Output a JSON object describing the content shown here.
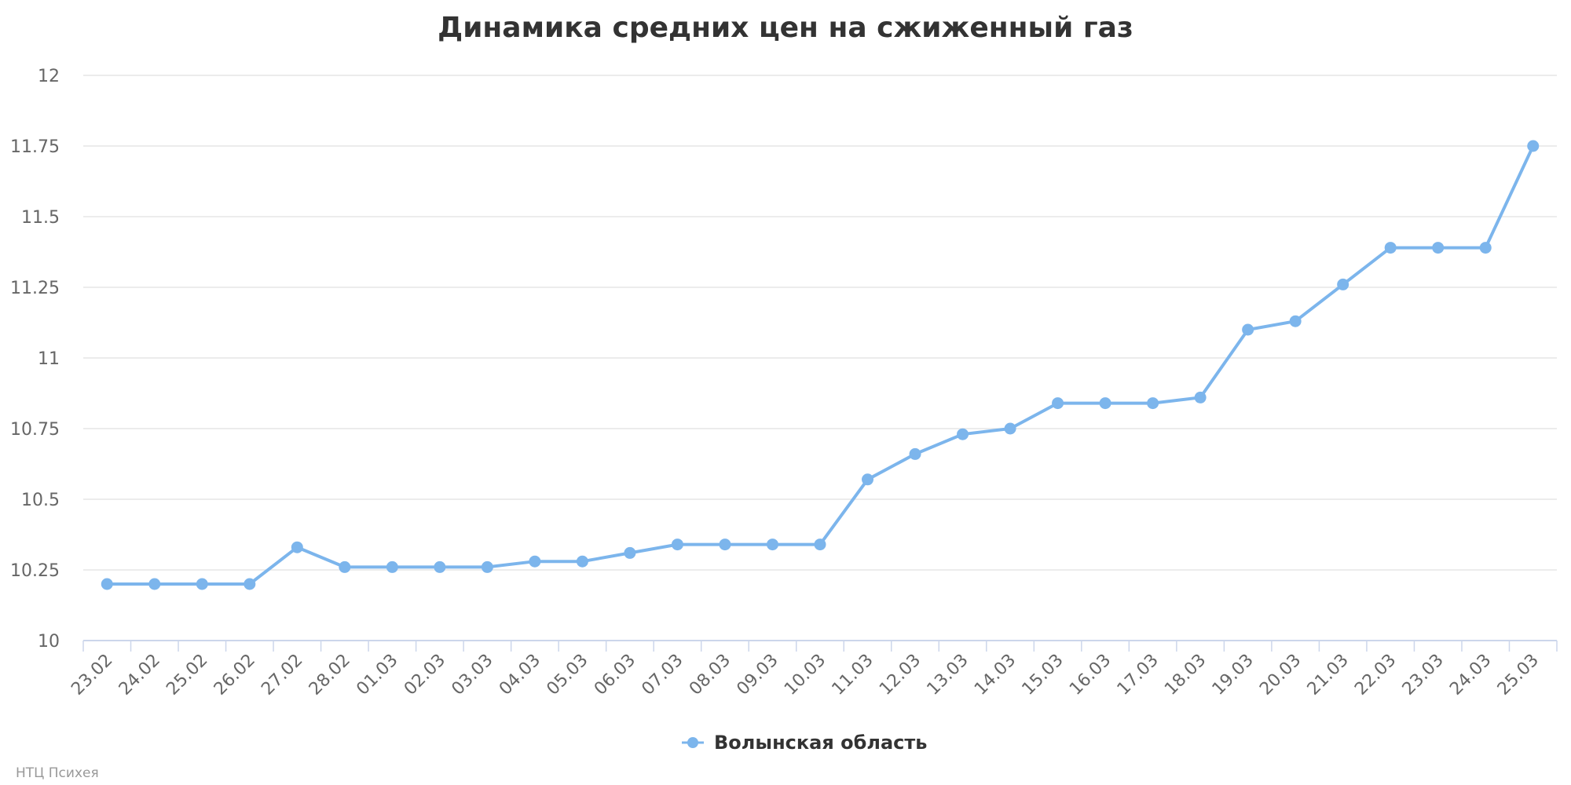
{
  "chart_data": {
    "type": "line",
    "title": "Динамика средних цен на сжиженный газ",
    "categories": [
      "23.02",
      "24.02",
      "25.02",
      "26.02",
      "27.02",
      "28.02",
      "01.03",
      "02.03",
      "03.03",
      "04.03",
      "05.03",
      "06.03",
      "07.03",
      "08.03",
      "09.03",
      "10.03",
      "11.03",
      "12.03",
      "13.03",
      "14.03",
      "15.03",
      "16.03",
      "17.03",
      "18.03",
      "19.03",
      "20.03",
      "21.03",
      "22.03",
      "23.03",
      "24.03",
      "25.03"
    ],
    "series": [
      {
        "name": "Волынская область",
        "color": "#7cb5ec",
        "values": [
          10.2,
          10.2,
          10.2,
          10.2,
          10.33,
          10.26,
          10.26,
          10.26,
          10.26,
          10.28,
          10.28,
          10.31,
          10.34,
          10.34,
          10.34,
          10.34,
          10.57,
          10.66,
          10.73,
          10.75,
          10.84,
          10.84,
          10.84,
          10.86,
          11.1,
          11.13,
          11.26,
          11.39,
          11.39,
          11.39,
          11.75
        ]
      }
    ],
    "ylim": [
      10,
      12
    ],
    "yticks": [
      "10",
      "10.25",
      "10.5",
      "10.75",
      "11",
      "11.25",
      "11.5",
      "11.75",
      "12"
    ],
    "xlabel": "",
    "ylabel": "",
    "grid": true,
    "legend": "bottom-center"
  },
  "credits": "НТЦ Психея"
}
